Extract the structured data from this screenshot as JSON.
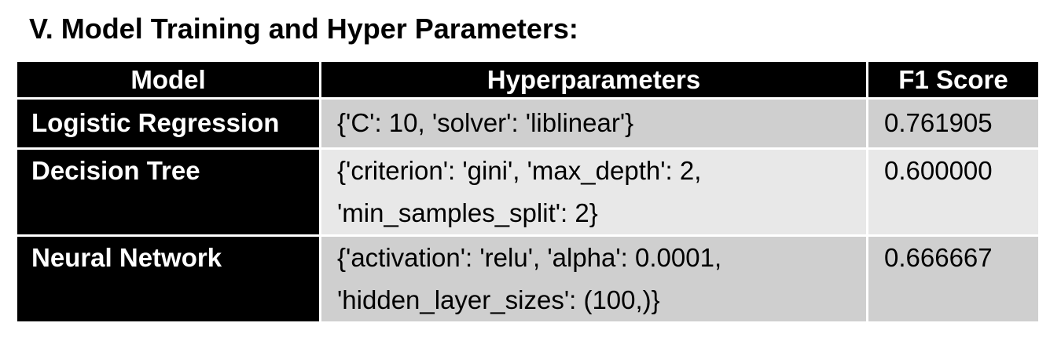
{
  "section": {
    "title": "V. Model Training and Hyper Parameters:"
  },
  "table": {
    "headers": {
      "model": "Model",
      "hyperparameters": "Hyperparameters",
      "f1": "F1 Score"
    },
    "rows": [
      {
        "model": "Logistic Regression",
        "hyper_line1": "{'C': 10, 'solver': 'liblinear'}",
        "hyper_line2": "",
        "f1": "0.761905"
      },
      {
        "model": "Decision Tree",
        "hyper_line1": "{'criterion': 'gini', 'max_depth': 2,",
        "hyper_line2": "'min_samples_split': 2}",
        "f1": "0.600000"
      },
      {
        "model": "Neural Network",
        "hyper_line1": "{'activation': 'relu', 'alpha': 0.0001,",
        "hyper_line2": "'hidden_layer_sizes': (100,)}",
        "f1": "0.666667"
      }
    ]
  },
  "colors": {
    "header_bg": "#000000",
    "model_cell_bg": "#000000",
    "row_dark_bg": "#cfcfcf",
    "row_light_bg": "#e8e8e8"
  }
}
